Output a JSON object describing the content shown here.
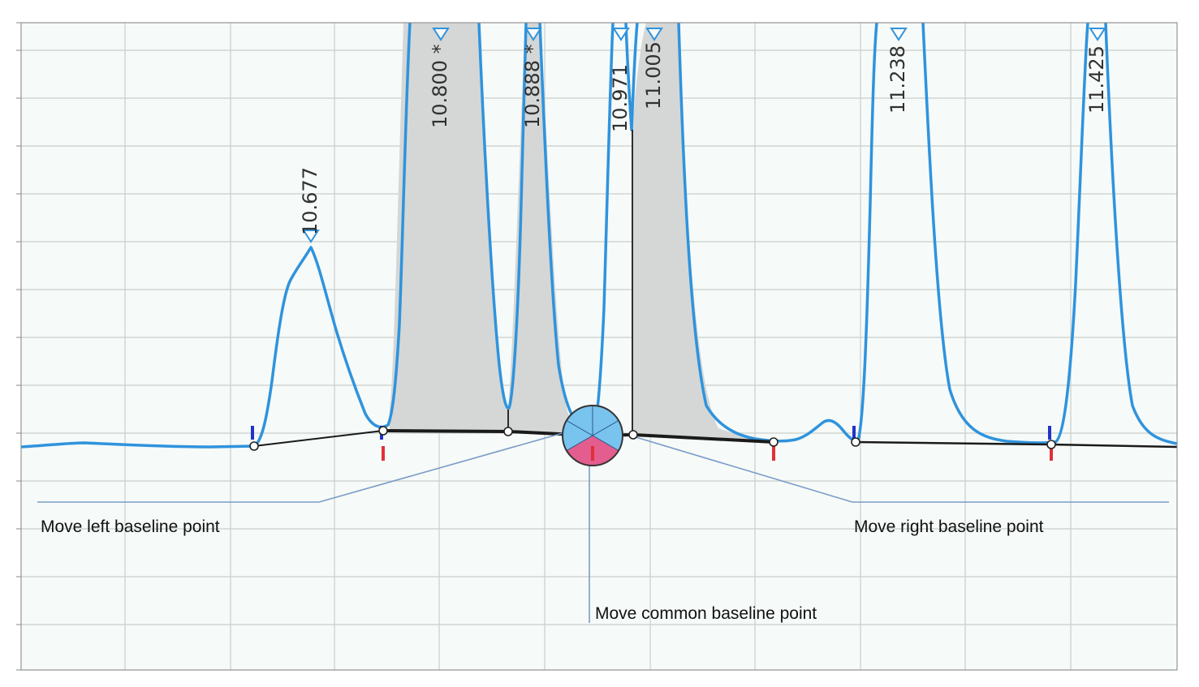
{
  "chart_data": {
    "type": "line",
    "title": "",
    "xlabel": "",
    "ylabel": "",
    "grid": true,
    "colors": {
      "plot_background": "#f6faf8",
      "grid": "#c9cfcc",
      "signal": "#2f93dd",
      "baseline": "#1a1a1a",
      "peak_fill": "#d4d7d5",
      "marker_start": "#2233cc",
      "marker_end": "#e0303a",
      "callout_line": "#7a9cc6",
      "handle_blue": "#79c3ef",
      "handle_pink": "#e35d8f"
    },
    "peaks": [
      {
        "label": "10.677",
        "rt": 10.677
      },
      {
        "label": "10.800 *",
        "rt": 10.8
      },
      {
        "label": "10.888 *",
        "rt": 10.888
      },
      {
        "label": "10.971",
        "rt": 10.971
      },
      {
        "label": "11.005",
        "rt": 11.005
      },
      {
        "label": "11.238",
        "rt": 11.238
      },
      {
        "label": "11.425",
        "rt": 11.425
      }
    ]
  },
  "annotations": {
    "left": "Move left baseline point",
    "right": "Move right baseline point",
    "common": "Move common baseline point"
  }
}
